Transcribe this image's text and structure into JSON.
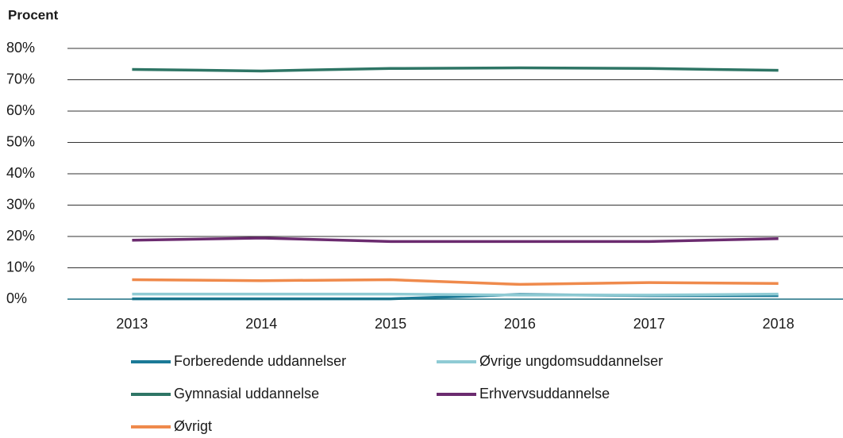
{
  "chart_data": {
    "type": "line",
    "y_axis_label": "Procent",
    "categories": [
      "2013",
      "2014",
      "2015",
      "2016",
      "2017",
      "2018"
    ],
    "series": [
      {
        "name": "Forberedende uddannelser",
        "color": "#1b7a97",
        "values": [
          0.1,
          0.1,
          0.1,
          1.5,
          1.1,
          1.1
        ]
      },
      {
        "name": "Øvrige ungdomsuddannelser",
        "color": "#8fcbd4",
        "values": [
          1.6,
          1.6,
          1.6,
          1.3,
          1.3,
          1.6
        ]
      },
      {
        "name": "Gymnasial uddannelse",
        "color": "#2e7565",
        "values": [
          73.3,
          72.8,
          73.6,
          73.8,
          73.6,
          73.0
        ]
      },
      {
        "name": "Erhvervsuddannelse",
        "color": "#6b2b6f",
        "values": [
          18.8,
          19.5,
          18.4,
          18.4,
          18.4,
          19.3
        ]
      },
      {
        "name": "Øvrigt",
        "color": "#ef8a4c",
        "values": [
          6.2,
          5.9,
          6.2,
          4.7,
          5.3,
          5.0
        ]
      }
    ],
    "ylim": [
      0,
      80
    ],
    "yticks": [
      {
        "value": 0,
        "label": "0%"
      },
      {
        "value": 10,
        "label": "10%"
      },
      {
        "value": 20,
        "label": "20%"
      },
      {
        "value": 30,
        "label": "30%"
      },
      {
        "value": 40,
        "label": "40%"
      },
      {
        "value": 50,
        "label": "50%"
      },
      {
        "value": 60,
        "label": "60%"
      },
      {
        "value": 70,
        "label": "70%"
      },
      {
        "value": 80,
        "label": "80%"
      }
    ],
    "grid": true
  }
}
